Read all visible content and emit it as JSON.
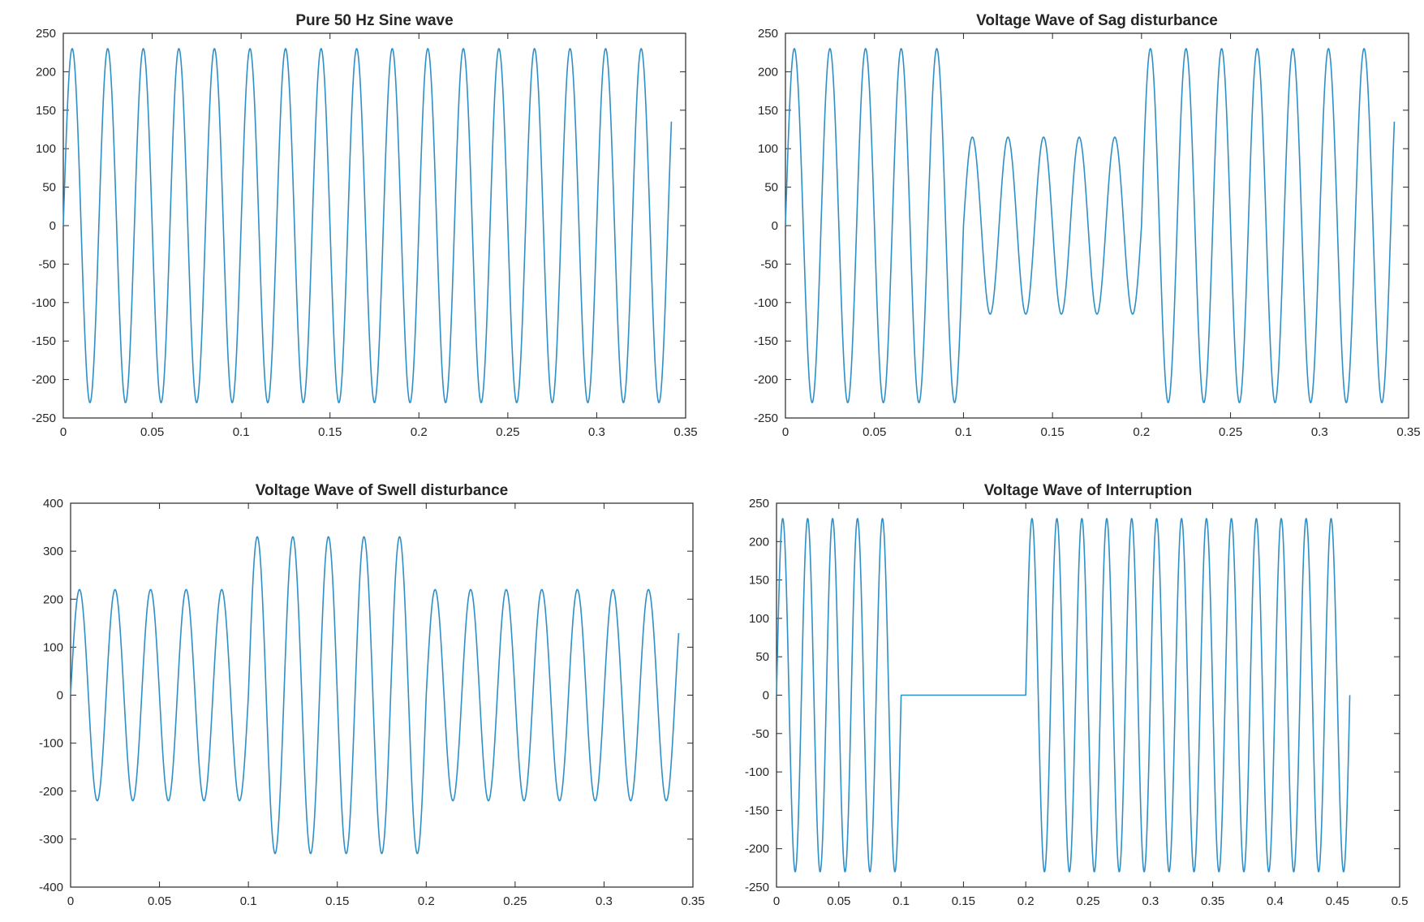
{
  "chart_data": [
    {
      "type": "line",
      "title": "Pure 50 Hz Sine wave",
      "xlim": [
        0,
        0.35
      ],
      "ylim": [
        -250,
        250
      ],
      "xticks": [
        0,
        0.05,
        0.1,
        0.15,
        0.2,
        0.25,
        0.3,
        0.35
      ],
      "xtick_labels": [
        "0",
        "0.05",
        "0.1",
        "0.15",
        "0.2",
        "0.25",
        "0.3",
        "0.35"
      ],
      "yticks": [
        -250,
        -200,
        -150,
        -100,
        -50,
        0,
        50,
        100,
        150,
        200,
        250
      ],
      "ytick_labels": [
        "-250",
        "-200",
        "-150",
        "-100",
        "-50",
        "0",
        "50",
        "100",
        "150",
        "200",
        "250"
      ],
      "grid": false,
      "line_color": "#2f8fc7",
      "signal": {
        "frequency_hz": 50,
        "t_end": 0.342,
        "segments": [
          {
            "t_start": 0,
            "t_end": 0.342,
            "amplitude": 230
          }
        ]
      }
    },
    {
      "type": "line",
      "title": "Voltage Wave of Sag disturbance",
      "xlim": [
        0,
        0.35
      ],
      "ylim": [
        -250,
        250
      ],
      "xticks": [
        0,
        0.05,
        0.1,
        0.15,
        0.2,
        0.25,
        0.3,
        0.35
      ],
      "xtick_labels": [
        "0",
        "0.05",
        "0.1",
        "0.15",
        "0.2",
        "0.25",
        "0.3",
        "0.35"
      ],
      "yticks": [
        -250,
        -200,
        -150,
        -100,
        -50,
        0,
        50,
        100,
        150,
        200,
        250
      ],
      "ytick_labels": [
        "-250",
        "-200",
        "-150",
        "-100",
        "-50",
        "0",
        "50",
        "100",
        "150",
        "200",
        "250"
      ],
      "grid": false,
      "line_color": "#2f8fc7",
      "signal": {
        "frequency_hz": 50,
        "t_end": 0.342,
        "segments": [
          {
            "t_start": 0,
            "t_end": 0.1,
            "amplitude": 230
          },
          {
            "t_start": 0.1,
            "t_end": 0.2,
            "amplitude": 115
          },
          {
            "t_start": 0.2,
            "t_end": 0.342,
            "amplitude": 230
          }
        ]
      }
    },
    {
      "type": "line",
      "title": "Voltage Wave of Swell disturbance",
      "xlim": [
        0,
        0.35
      ],
      "ylim": [
        -400,
        400
      ],
      "xticks": [
        0,
        0.05,
        0.1,
        0.15,
        0.2,
        0.25,
        0.3,
        0.35
      ],
      "xtick_labels": [
        "0",
        "0.05",
        "0.1",
        "0.15",
        "0.2",
        "0.25",
        "0.3",
        "0.35"
      ],
      "yticks": [
        -400,
        -300,
        -200,
        -100,
        0,
        100,
        200,
        300,
        400
      ],
      "ytick_labels": [
        "-400",
        "-300",
        "-200",
        "-100",
        "0",
        "100",
        "200",
        "300",
        "400"
      ],
      "grid": false,
      "line_color": "#2f8fc7",
      "signal": {
        "frequency_hz": 50,
        "t_end": 0.342,
        "segments": [
          {
            "t_start": 0,
            "t_end": 0.1,
            "amplitude": 220
          },
          {
            "t_start": 0.1,
            "t_end": 0.2,
            "amplitude": 330
          },
          {
            "t_start": 0.2,
            "t_end": 0.342,
            "amplitude": 220
          }
        ]
      }
    },
    {
      "type": "line",
      "title": "Voltage Wave of Interruption",
      "xlim": [
        0,
        0.5
      ],
      "ylim": [
        -250,
        250
      ],
      "xticks": [
        0,
        0.05,
        0.1,
        0.15,
        0.2,
        0.25,
        0.3,
        0.35,
        0.4,
        0.45,
        0.5
      ],
      "xtick_labels": [
        "0",
        "0.05",
        "0.1",
        "0.15",
        "0.2",
        "0.25",
        "0.3",
        "0.35",
        "0.4",
        "0.45",
        "0.5"
      ],
      "yticks": [
        -250,
        -200,
        -150,
        -100,
        -50,
        0,
        50,
        100,
        150,
        200,
        250
      ],
      "ytick_labels": [
        "-250",
        "-200",
        "-150",
        "-100",
        "-50",
        "0",
        "50",
        "100",
        "150",
        "200",
        "250"
      ],
      "grid": false,
      "line_color": "#2f8fc7",
      "signal": {
        "frequency_hz": 50,
        "t_end": 0.46,
        "segments": [
          {
            "t_start": 0,
            "t_end": 0.1,
            "amplitude": 230
          },
          {
            "t_start": 0.1,
            "t_end": 0.2,
            "amplitude": 0
          },
          {
            "t_start": 0.2,
            "t_end": 0.46,
            "amplitude": 230
          }
        ]
      }
    }
  ]
}
